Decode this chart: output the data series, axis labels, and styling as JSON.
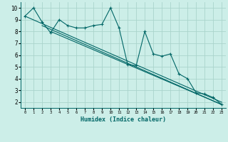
{
  "title": "",
  "xlabel": "Humidex (Indice chaleur)",
  "ylabel": "",
  "bg_color": "#cceee8",
  "line_color": "#006666",
  "grid_color": "#aad4cc",
  "xlim": [
    -0.5,
    23.5
  ],
  "ylim": [
    1.5,
    10.5
  ],
  "xticks": [
    0,
    1,
    2,
    3,
    4,
    5,
    6,
    7,
    8,
    9,
    10,
    11,
    12,
    13,
    14,
    15,
    16,
    17,
    18,
    19,
    20,
    21,
    22,
    23
  ],
  "yticks": [
    2,
    3,
    4,
    5,
    6,
    7,
    8,
    9,
    10
  ],
  "hourly_x": [
    0,
    1,
    2,
    3,
    4,
    5,
    6,
    7,
    8,
    9,
    10,
    11,
    12,
    13,
    14,
    15,
    16,
    17,
    18,
    19,
    20,
    21,
    22,
    23
  ],
  "hourly_y": [
    9.3,
    10.0,
    8.8,
    7.9,
    9.0,
    8.5,
    8.3,
    8.3,
    8.5,
    8.6,
    10.0,
    8.3,
    5.2,
    5.1,
    8.0,
    6.1,
    5.9,
    6.1,
    4.4,
    4.0,
    2.8,
    2.7,
    2.4,
    1.8
  ],
  "trend1_x": [
    0,
    23
  ],
  "trend1_y": [
    9.3,
    2.0
  ],
  "trend2_x": [
    2,
    23
  ],
  "trend2_y": [
    8.5,
    1.8
  ],
  "trend3_x": [
    3,
    23
  ],
  "trend3_y": [
    8.0,
    1.8
  ]
}
